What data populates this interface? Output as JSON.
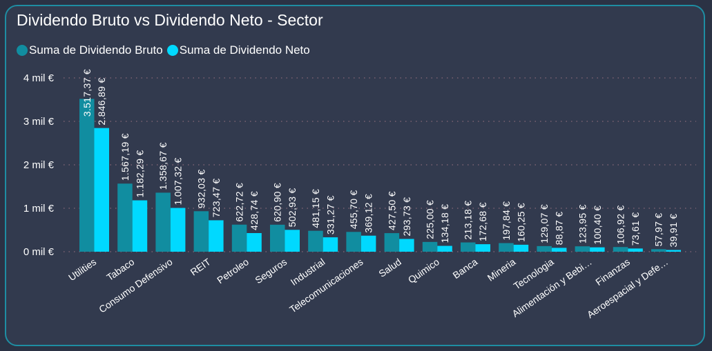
{
  "chart_data": {
    "type": "bar",
    "title": "Dividendo Bruto vs Dividendo Neto - Sector",
    "xlabel": "",
    "ylabel": "",
    "ylim": [
      0,
      4000
    ],
    "yticks": [
      0,
      1000,
      2000,
      3000,
      4000
    ],
    "ytick_labels": [
      "0 mil €",
      "1 mil €",
      "2 mil €",
      "3 mil €",
      "4 mil €"
    ],
    "grid": true,
    "legend_position": "top-left",
    "categories": [
      "Utilities",
      "Tabaco",
      "Consumo Defensivo",
      "REIT",
      "Petroleo",
      "Seguros",
      "Industrial",
      "Telecomunicaciones",
      "Salud",
      "Quimico",
      "Banca",
      "Mineria",
      "Tecnologia",
      "Alimentación y Bebi…",
      "Finanzas",
      "Aeroespacial y Defe…"
    ],
    "series": [
      {
        "name": "Suma de Dividendo Bruto",
        "color": "#118da0",
        "values": [
          3517.37,
          1567.19,
          1358.67,
          932.03,
          622.72,
          620.9,
          481.15,
          455.7,
          427.5,
          225.0,
          213.18,
          197.84,
          129.07,
          123.95,
          106.92,
          57.97
        ],
        "labels": [
          "3.517,37 €",
          "1.567,19 €",
          "1.358,67 €",
          "932,03 €",
          "622,72 €",
          "620,90 €",
          "481,15 €",
          "455,70 €",
          "427,50 €",
          "225,00 €",
          "213,18 €",
          "197,84 €",
          "129,07 €",
          "123,95 €",
          "106,92 €",
          "57,97 €"
        ]
      },
      {
        "name": "Suma de Dividendo Neto",
        "color": "#00d9ff",
        "values": [
          2846.89,
          1182.29,
          1007.32,
          723.47,
          428.74,
          502.93,
          331.27,
          369.12,
          293.73,
          134.18,
          172.68,
          160.25,
          88.87,
          100.4,
          73.61,
          39.91
        ],
        "labels": [
          "2.846,89 €",
          "1.182,29 €",
          "1.007,32 €",
          "723,47 €",
          "428,74 €",
          "502,93 €",
          "331,27 €",
          "369,12 €",
          "293,73 €",
          "134,18 €",
          "172,68 €",
          "160,25 €",
          "88,87 €",
          "100,40 €",
          "73,61 €",
          "39,91 €"
        ]
      }
    ]
  },
  "colors": {
    "background": "#323a4e",
    "border": "#1e8ea3",
    "gridline": "#8a6a7a",
    "text": "#ffffff"
  }
}
